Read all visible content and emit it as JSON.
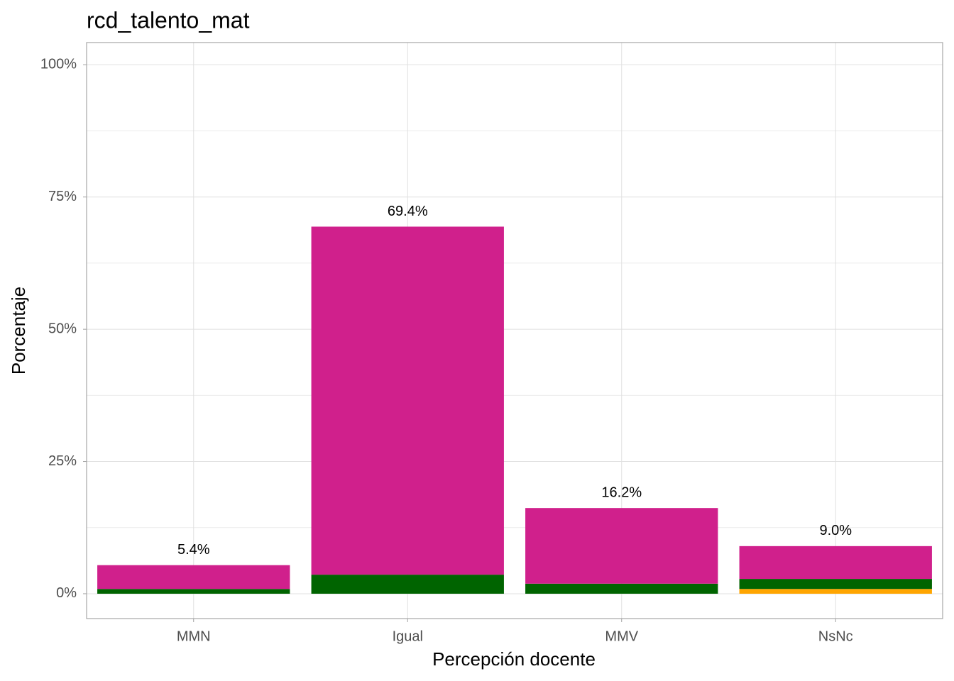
{
  "chart_data": {
    "type": "stacked_bar",
    "title": "rcd_talento_mat",
    "x_label": "Percepción docente",
    "y_label": "Porcentaje",
    "categories": [
      "MMN",
      "Igual",
      "MMV",
      "NsNc"
    ],
    "series": [
      {
        "color": "#FFA500",
        "values": [
          0,
          0,
          0,
          0.9
        ]
      },
      {
        "color": "#006400",
        "values": [
          0.9,
          3.6,
          1.9,
          1.9
        ]
      },
      {
        "color": "#D0208C",
        "values": [
          4.5,
          65.8,
          14.3,
          6.2
        ]
      }
    ],
    "totals": [
      5.4,
      69.4,
      16.2,
      9.0
    ],
    "total_labels": [
      "5.4%",
      "69.4%",
      "16.2%",
      "9.0%"
    ],
    "ylim": [
      -4.7,
      104.2
    ],
    "yticks": [
      {
        "value": 0,
        "label": "0%"
      },
      {
        "value": 25,
        "label": "25%"
      },
      {
        "value": 50,
        "label": "50%"
      },
      {
        "value": 75,
        "label": "75%"
      },
      {
        "value": 100,
        "label": "100%"
      }
    ],
    "minor_yticks": [
      12.5,
      37.5,
      62.5,
      87.5
    ],
    "grid": true
  }
}
